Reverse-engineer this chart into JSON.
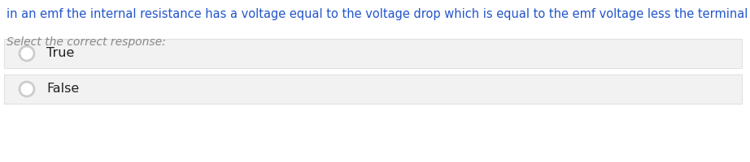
{
  "background_color": "#ffffff",
  "question_text": "in an emf the internal resistance has a voltage equal to the voltage drop which is equal to the emf voltage less the terminal voltage.",
  "question_color": "#2255cc",
  "prompt_text": "Select the correct response:",
  "prompt_color": "#888888",
  "options": [
    "True",
    "False"
  ],
  "option_text_color": "#222222",
  "option_bg_color": "#f2f2f2",
  "option_border_color": "#e0e0e0",
  "radio_edge_color": "#cccccc",
  "radio_fill_color": "#ffffff",
  "question_fontsize": 10.5,
  "prompt_fontsize": 10.0,
  "option_fontsize": 11.5,
  "fig_width": 9.22,
  "fig_height": 2.0,
  "dpi": 100
}
